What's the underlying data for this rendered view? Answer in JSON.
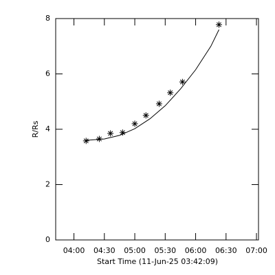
{
  "chart_data": {
    "type": "scatter",
    "xlabel": "Start Time (11-Jun-25 03:42:09)",
    "ylabel": "R/Rs",
    "x": [
      "04:12",
      "04:25",
      "04:36",
      "04:48",
      "05:00",
      "05:11",
      "05:24",
      "05:35",
      "05:47",
      "06:23"
    ],
    "values": [
      3.58,
      3.65,
      3.85,
      3.88,
      4.2,
      4.5,
      4.92,
      5.32,
      5.71,
      7.78
    ],
    "fit_x": [
      "04:12",
      "04:30",
      "04:45",
      "05:00",
      "05:15",
      "05:30",
      "05:45",
      "06:00",
      "06:15",
      "06:23"
    ],
    "fit_values": [
      3.6,
      3.65,
      3.78,
      4.02,
      4.38,
      4.85,
      5.45,
      6.15,
      7.0,
      7.6
    ],
    "color": "#000000",
    "xlim": [
      "03:42",
      "07:02"
    ],
    "xticks": [
      "04:00",
      "04:30",
      "05:00",
      "05:30",
      "06:00",
      "06:30",
      "07:00"
    ],
    "ylim": [
      0,
      8
    ],
    "yticks": [
      0,
      2,
      4,
      6,
      8
    ]
  }
}
